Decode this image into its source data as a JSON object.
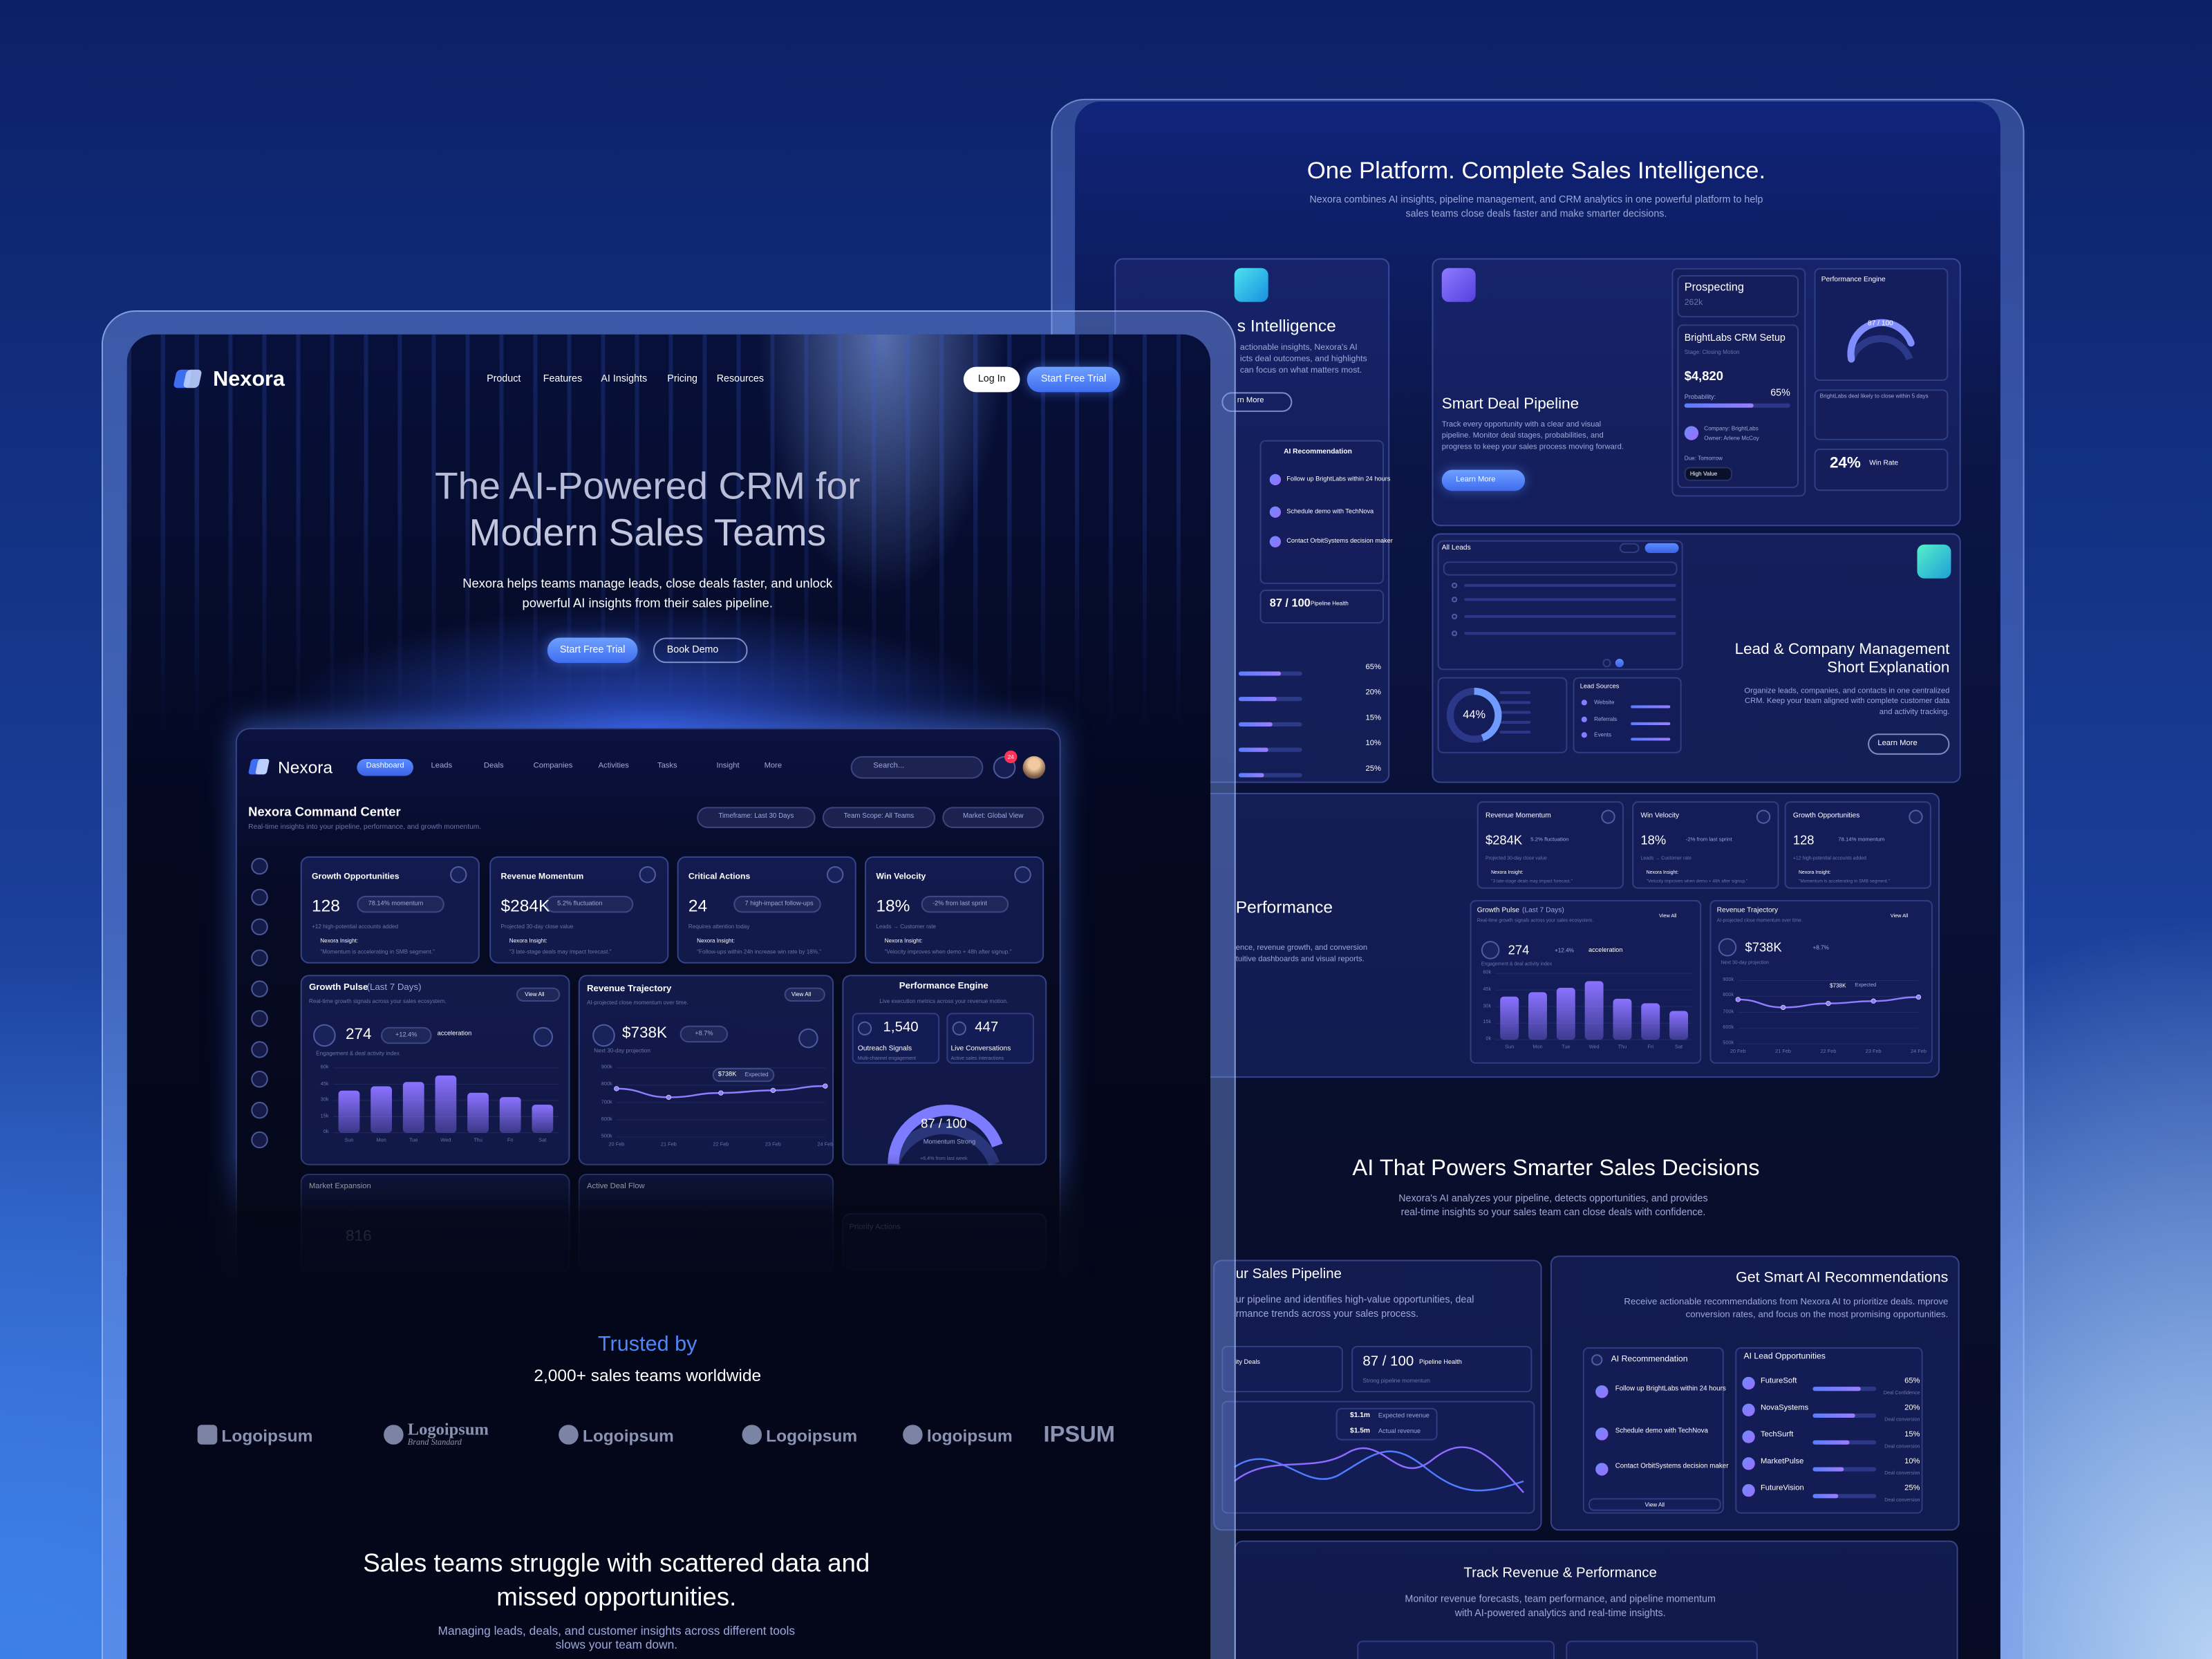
{
  "left_page": {
    "brand": "Nexora",
    "nav": [
      "Product",
      "Features",
      "AI Insights",
      "Pricing",
      "Resources"
    ],
    "login": "Log In",
    "cta": "Start Free Trial",
    "hero_title": [
      "The AI-Powered CRM for",
      "Modern Sales Teams"
    ],
    "hero_text": [
      "Nexora helps teams manage leads, close deals faster, and unlock",
      "powerful AI insights from their sales pipeline."
    ],
    "hero_buttons": [
      "Start Free Trial",
      "Book Demo"
    ],
    "dashboard": {
      "brand": "Nexora",
      "tabs": [
        "Dashboard",
        "Leads",
        "Deals",
        "Companies",
        "Activities",
        "Tasks",
        "Insight",
        "More"
      ],
      "search": "Search...",
      "notifications": "24",
      "title": "Nexora Command Center",
      "subtitle": "Real-time insights into your pipeline, performance, and growth momentum.",
      "filters": [
        "Timeframe: Last 30 Days",
        "Team Scope: All Teams",
        "Market: Global View"
      ],
      "kpis": [
        {
          "title": "Growth Opportunities",
          "value": "128",
          "delta": "78.14% momentum",
          "note": "+12 high-potential accounts added",
          "insight": "Nexora Insight:",
          "quote": "\"Momentum is accelerating in SMB segment.\""
        },
        {
          "title": "Revenue Momentum",
          "value": "$284K",
          "delta": "5.2% fluctuation",
          "note": "Projected 30-day close value",
          "insight": "Nexora Insight:",
          "quote": "\"3 late-stage deals may impact forecast.\""
        },
        {
          "title": "Critical Actions",
          "value": "24",
          "delta": "7 high-impact follow-ups",
          "note": "Requires attention today",
          "insight": "Nexora Insight:",
          "quote": "\"Follow-ups within 24h increase win rate by 18%.\""
        },
        {
          "title": "Win Velocity",
          "value": "18%",
          "delta": "-2% from last sprint",
          "note": "Leads → Customer rate",
          "insight": "Nexora Insight:",
          "quote": "\"Velocity improves when demo + 48h after signup.\""
        }
      ],
      "growth_pulse": {
        "title": "Growth Pulse",
        "period": "(Last 7 Days)",
        "subtitle": "Real-time growth signals across your sales ecosystem.",
        "view_all": "View All",
        "value": "274",
        "delta": "+12.4%",
        "delta_label": "acceleration",
        "caption": "Engagement & deal activity index"
      },
      "revenue_trajectory": {
        "title": "Revenue Trajectory",
        "subtitle": "AI-projected close momentum over time.",
        "view_all": "View All",
        "value": "$738K",
        "delta": "+8.7%",
        "caption": "Next 30-day projection",
        "marker": "$738K",
        "marker_label": "Expected"
      },
      "performance_engine": {
        "title": "Performance Engine",
        "subtitle": "Live execution metrics across your revenue motion.",
        "outreach": "1,540",
        "outreach_label": "Outreach Signals",
        "outreach_note": "Multi-channel engagement",
        "conversations": "447",
        "conversations_label": "Live Conversations",
        "conversations_note": "Active sales interactions",
        "score": "87 / 100",
        "score_label": "Momentum Strong",
        "score_note": "+6.4% from last week"
      },
      "faded": {
        "market": "Market Expansion",
        "market_value": "816",
        "deal_flow": "Active Deal Flow",
        "priority": "Priority Actions"
      }
    },
    "trusted_title": "Trusted by",
    "trusted_text": "2,000+ sales teams worldwide",
    "logos": [
      "Logoipsum",
      "Logoipsum",
      "Logoipsum",
      "Logoipsum",
      "logoipsum",
      "IPSUM"
    ],
    "logo_tagline": "Brand Standard",
    "problem_title": [
      "Sales teams struggle with scattered data and",
      "missed opportunities."
    ],
    "problem_text": [
      "Managing leads, deals, and customer insights across different tools",
      "slows your team down."
    ]
  },
  "right_page": {
    "title": "One Platform. Complete Sales Intelligence.",
    "subtitle": [
      "Nexora combines AI insights, pipeline management, and CRM analytics in one powerful platform to help",
      "sales teams close deals faster and make smarter decisions."
    ],
    "intelligence": {
      "title": "s Intelligence",
      "text": [
        "actionable insights, Nexora's AI",
        "icts deal outcomes, and highlights",
        "can focus on what matters most."
      ],
      "button": "rn More",
      "recommendation": "AI Recommendation",
      "items": [
        "Follow up BrightLabs within 24 hours",
        "Schedule demo with TechNova",
        "Contact OrbitSystems decision maker"
      ],
      "score": "87 / 100",
      "score_label": "Pipeline Health",
      "rates": [
        "65%",
        "20%",
        "15%",
        "10%",
        "25%"
      ]
    },
    "pipeline": {
      "title": "Smart Deal Pipeline",
      "text": [
        "Track every opportunity with a clear and visual",
        "pipeline. Monitor deal stages, probabilities, and",
        "progress to keep your sales process moving forward."
      ],
      "button": "Learn More",
      "stage": "Prospecting",
      "stage_value": "262k",
      "deal": "BrightLabs CRM Setup",
      "deal_stage": "Stage: Closing Motion",
      "amount": "$4,820",
      "probability_label": "Probability:",
      "probability": "65%",
      "company": "Company: BrightLabs",
      "owner": "Owner: Arlene McCoy",
      "due": "Due: Tomorrow",
      "tag": "High Value",
      "engine": "Performance Engine",
      "engine_score": "87 / 100",
      "engine_note": "BrightLabs deal likely to close within 5 days",
      "win_rate": "24%",
      "win_rate_label": "Win Rate"
    },
    "leads": {
      "title": [
        "Lead & Company Management",
        "Short Explanation"
      ],
      "text": [
        "Organize leads, companies, and contacts in one centralized",
        "CRM. Keep your team aligned with complete customer data",
        "and activity tracking."
      ],
      "button": "Learn More",
      "table_title": "All Leads",
      "donut": "44%",
      "sources": "Lead Sources",
      "source_items": [
        "Website",
        "Referrals",
        "Events"
      ]
    },
    "performance": {
      "title": "Performance",
      "text": [
        "ence, revenue growth, and conversion",
        "tuitive dashboards and visual reports."
      ]
    },
    "ai_title": "AI That Powers Smarter Sales Decisions",
    "ai_text": [
      "Nexora's AI analyzes your pipeline, detects opportunities, and provides",
      "real-time insights so your sales team can close deals with confidence."
    ],
    "pipeline_card": {
      "title": "ur Sales Pipeline",
      "text": [
        "ur pipeline and identifies high-value opportunities, deal",
        "rmance trends across your sales process."
      ],
      "deals": "ity Deals",
      "score": "87 / 100",
      "score_label": "Pipeline Health",
      "score_note": "Strong pipeline momentum",
      "expected": "$1.1m",
      "expected_label": "Expected revenue",
      "actual": "$1.5m",
      "actual_label": "Actual revenue"
    },
    "recommend_card": {
      "title": "Get Smart AI Recommendations",
      "text": [
        "Receive actionable recommendations from Nexora AI to prioritize deals. mprove",
        "conversion rates, and focus on the most promising opportunities."
      ],
      "panel": "AI Recommendation",
      "items": [
        "Follow up BrightLabs within 24 hours",
        "Schedule demo with TechNova",
        "Contact OrbitSystems decision maker"
      ],
      "view_all": "View All",
      "opportunities": "AI Lead Opportunities",
      "companies": [
        {
          "name": "FutureSoft",
          "rate": "65%",
          "label": "Deal Confidence"
        },
        {
          "name": "NovaSystems",
          "rate": "20%",
          "label": "Deal conversion"
        },
        {
          "name": "TechSurft",
          "rate": "15%",
          "label": "Deal conversion"
        },
        {
          "name": "MarketPulse",
          "rate": "10%",
          "label": "Deal conversion"
        },
        {
          "name": "FutureVision",
          "rate": "25%",
          "label": "Deal conversion"
        }
      ]
    },
    "revenue_card": {
      "title": "Track Revenue & Performance",
      "text": [
        "Monitor revenue forecasts, team performance, and pipeline momentum",
        "with AI-powered analytics and real-time insights."
      ]
    }
  },
  "chart_data": [
    {
      "type": "bar",
      "categories": [
        "Sun",
        "Mon",
        "Tue",
        "Wed",
        "Thu",
        "Fri",
        "Sat"
      ],
      "values": [
        39,
        43,
        47,
        53,
        37,
        33,
        26
      ],
      "color": "#8a72ff",
      "ylim": [
        0,
        60
      ],
      "yticks": [
        {
          "value": 0,
          "label": "0k"
        },
        {
          "value": 15,
          "label": "15k"
        },
        {
          "value": 30,
          "label": "30k"
        },
        {
          "value": 45,
          "label": "45k"
        },
        {
          "value": 60,
          "label": "60k"
        }
      ]
    },
    {
      "type": "line",
      "categories": [
        "20 Feb",
        "21 Feb",
        "22 Feb",
        "23 Feb",
        "24 Feb"
      ],
      "values": [
        780,
        730,
        755,
        770,
        795
      ],
      "color": "#8f7dff",
      "ylim": [
        500,
        900
      ],
      "yticks": [
        {
          "value": 500,
          "label": "500k"
        },
        {
          "value": 600,
          "label": "600k"
        },
        {
          "value": 700,
          "label": "700k"
        },
        {
          "value": 800,
          "label": "800k"
        },
        {
          "value": 900,
          "label": "900k"
        }
      ]
    }
  ]
}
